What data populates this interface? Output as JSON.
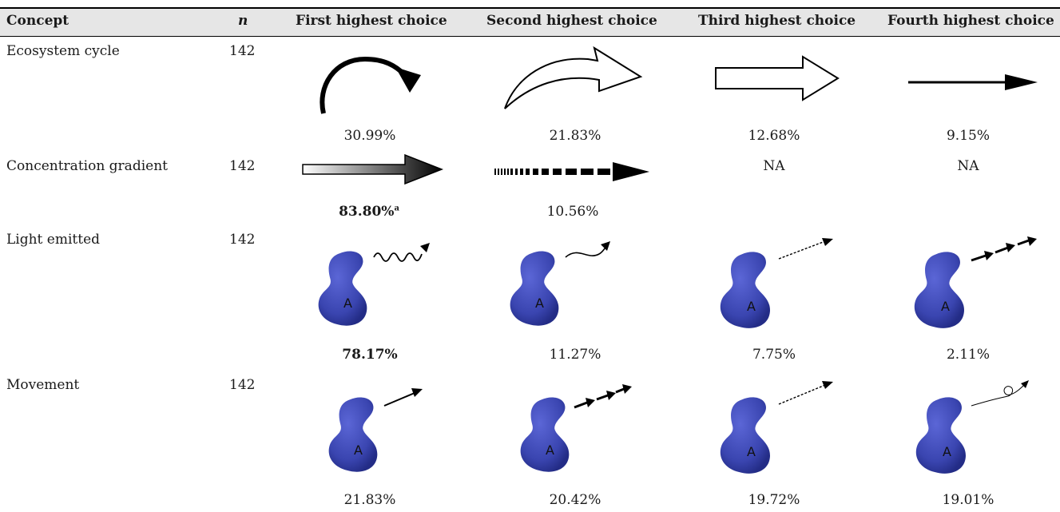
{
  "table": {
    "headers": {
      "concept": "Concept",
      "n": "n",
      "first": "First highest choice",
      "second": "Second highest choice",
      "third": "Third highest choice",
      "fourth": "Fourth highest choice"
    },
    "rows": [
      {
        "concept": "Ecosystem cycle",
        "n": "142",
        "choices": [
          {
            "icon": "curved-solid-arrow-icon",
            "value": "30.99%"
          },
          {
            "icon": "curved-outline-arrow-icon",
            "value": "21.83%"
          },
          {
            "icon": "block-outline-arrow-icon",
            "value": "12.68%"
          },
          {
            "icon": "thin-line-arrow-icon",
            "value": "9.15%"
          }
        ]
      },
      {
        "concept": "Concentration gradient",
        "n": "142",
        "choices": [
          {
            "icon": "gradient-arrow-icon",
            "value": "83.80%",
            "sup": "a"
          },
          {
            "icon": "dashed-arrow-icon",
            "value": "10.56%"
          },
          {
            "icon": "",
            "value": "NA"
          },
          {
            "icon": "",
            "value": "NA"
          }
        ]
      },
      {
        "concept": "Light emitted",
        "n": "142",
        "choices": [
          {
            "icon": "molecule-wavy-arrow-icon",
            "value": "78.17%"
          },
          {
            "icon": "molecule-wave-arrow-icon",
            "value": "11.27%"
          },
          {
            "icon": "molecule-dotted-arrow-icon",
            "value": "7.75%"
          },
          {
            "icon": "molecule-multi-arrow-icon",
            "value": "2.11%"
          }
        ]
      },
      {
        "concept": "Movement",
        "n": "142",
        "choices": [
          {
            "icon": "molecule-straight-arrow-icon",
            "value": "21.83%"
          },
          {
            "icon": "molecule-multi-arrow-icon",
            "value": "20.42%"
          },
          {
            "icon": "molecule-dotted-arrow-icon",
            "value": "19.72%"
          },
          {
            "icon": "molecule-loop-arrow-icon",
            "value": "19.01%"
          }
        ]
      }
    ],
    "molecule_label": "A",
    "colors": {
      "molecule": "#3a45b0",
      "header_bg": "#e6e6e6"
    }
  }
}
